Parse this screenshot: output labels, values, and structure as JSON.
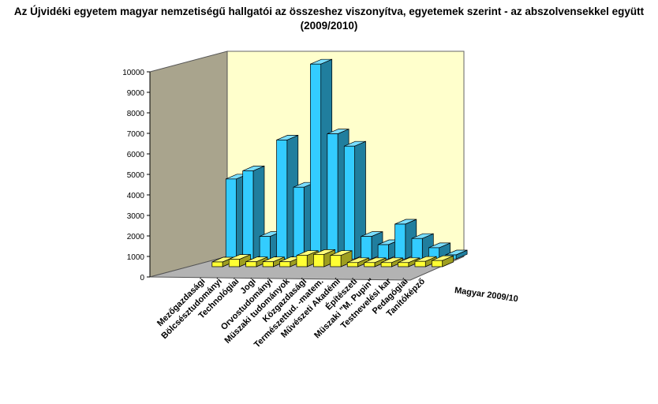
{
  "chart_data": {
    "type": "bar",
    "subtype": "3d-column",
    "title": "Az Újvidéki egyetem magyar nemzetiségű hallgatói az összeshez viszonyítva, egyetemek szerint  - az abszolvensekkel együtt (2009/2010)",
    "categories": [
      "Mezőgazdasági",
      "Bölcsésztudományi",
      "Technológiai",
      "Jogi",
      "Orvostudományi",
      "Müszaki tudományok",
      "Közgazdasági",
      "Természettud. -matem.",
      "Művészeti Akadémi",
      "Építészeti",
      "Müszaki \"M. Pupin\"",
      "Testnevelési kar",
      "Pedagógiai",
      "Tanítóképző"
    ],
    "series": [
      {
        "values": [
          3900,
          4300,
          1100,
          5800,
          3500,
          9500,
          6100,
          5500,
          1100,
          700,
          1700,
          1000,
          550,
          200
        ],
        "color": "#33ccff"
      },
      {
        "name": "Magyar 2009/10",
        "values": [
          230,
          360,
          240,
          240,
          240,
          550,
          600,
          550,
          200,
          200,
          200,
          200,
          260,
          300
        ],
        "color": "#ffff33"
      }
    ],
    "ylim": [
      0,
      10000
    ],
    "yticks": [
      "0",
      "1000",
      "2000",
      "3000",
      "4000",
      "5000",
      "6000",
      "7000",
      "8000",
      "9000",
      "10000"
    ],
    "grid": false,
    "colors": {
      "wall_back": "#ffffcc",
      "wall_side": "#a9a48d",
      "floor": "#b3b3b3"
    }
  }
}
